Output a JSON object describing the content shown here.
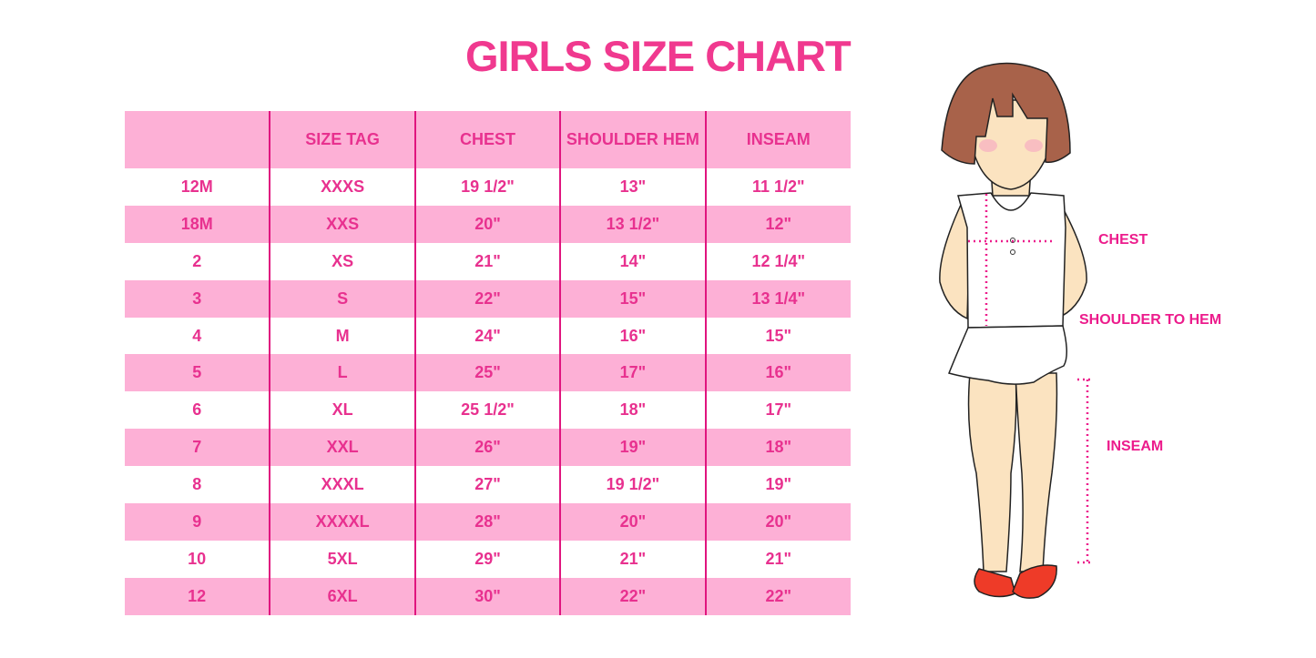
{
  "title": "GIRLS SIZE CHART",
  "table": {
    "headers": [
      "",
      "SIZE TAG",
      "CHEST",
      "SHOULDER HEM",
      "INSEAM"
    ],
    "rows": [
      [
        "12M",
        "XXXS",
        "19 1/2\"",
        "13\"",
        "11 1/2\""
      ],
      [
        "18M",
        "XXS",
        "20\"",
        "13 1/2\"",
        "12\""
      ],
      [
        "2",
        "XS",
        "21\"",
        "14\"",
        "12 1/4\""
      ],
      [
        "3",
        "S",
        "22\"",
        "15\"",
        "13 1/4\""
      ],
      [
        "4",
        "M",
        "24\"",
        "16\"",
        "15\""
      ],
      [
        "5",
        "L",
        "25\"",
        "17\"",
        "16\""
      ],
      [
        "6",
        "XL",
        "25 1/2\"",
        "18\"",
        "17\""
      ],
      [
        "7",
        "XXL",
        "26\"",
        "19\"",
        "18\""
      ],
      [
        "8",
        "XXXL",
        "27\"",
        "19 1/2\"",
        "19\""
      ],
      [
        "9",
        "XXXXL",
        "28\"",
        "20\"",
        "20\""
      ],
      [
        "10",
        "5XL",
        "29\"",
        "21\"",
        "21\""
      ],
      [
        "12",
        "6XL",
        "30\"",
        "22\"",
        "22\""
      ]
    ]
  },
  "illustration": {
    "labels": {
      "chest": "CHEST",
      "shoulder_to_hem": "SHOULDER TO HEM",
      "inseam": "INSEAM"
    }
  },
  "colors": {
    "accent": "#f0398f",
    "row_fill": "#fdb0d6",
    "divider": "#e0157f"
  }
}
